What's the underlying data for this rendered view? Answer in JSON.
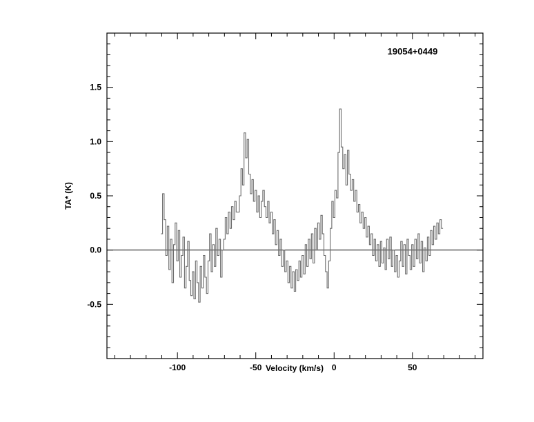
{
  "page": {
    "background": "#ffffff"
  },
  "chart_data": {
    "type": "line",
    "style": "step-histogram",
    "title": "19054+0449",
    "xlabel": "Velocity (km/s)",
    "ylabel": "TA* (K)",
    "xlim": [
      -145,
      95
    ],
    "ylim": [
      -1.0,
      2.0
    ],
    "x_major_ticks": [
      -100,
      -50,
      0,
      50
    ],
    "x_major_tick_labels": [
      "-100",
      "-50",
      "0",
      "50"
    ],
    "x_minor_tick_interval": 10,
    "y_major_ticks": [
      -0.5,
      0.0,
      0.5,
      1.0,
      1.5
    ],
    "y_major_tick_labels": [
      "-0.5",
      "0.0",
      "0.5",
      "1.0",
      "1.5"
    ],
    "y_minor_tick_interval": 0.1,
    "zero_line": 0.0,
    "grid": "off",
    "legend": "none",
    "line_color": "#6b6b6b",
    "axis_color": "#000000",
    "x_start": -110,
    "dx": 1.0,
    "values": [
      0.15,
      0.52,
      0.28,
      -0.05,
      0.22,
      -0.18,
      0.1,
      -0.3,
      0.05,
      0.25,
      -0.1,
      0.18,
      -0.25,
      -0.05,
      0.12,
      -0.35,
      -0.15,
      0.08,
      -0.28,
      -0.42,
      -0.2,
      -0.45,
      -0.1,
      -0.3,
      -0.48,
      -0.15,
      -0.35,
      -0.05,
      -0.25,
      -0.4,
      -0.1,
      0.15,
      -0.2,
      0.05,
      -0.15,
      0.2,
      -0.05,
      0.1,
      -0.25,
      0.0,
      0.1,
      0.3,
      0.15,
      0.35,
      0.2,
      0.4,
      0.28,
      0.45,
      0.35,
      0.35,
      0.5,
      0.75,
      0.6,
      1.08,
      0.85,
      1.02,
      0.7,
      0.52,
      0.65,
      0.45,
      0.55,
      0.35,
      0.5,
      0.3,
      0.45,
      0.55,
      0.4,
      0.3,
      0.45,
      0.25,
      0.35,
      0.15,
      0.28,
      0.05,
      0.18,
      -0.05,
      0.1,
      -0.15,
      0.0,
      -0.2,
      -0.1,
      -0.3,
      -0.15,
      -0.35,
      -0.2,
      -0.38,
      -0.18,
      -0.28,
      -0.1,
      -0.25,
      -0.05,
      -0.22,
      0.05,
      -0.15,
      0.1,
      -0.08,
      0.15,
      -0.12,
      0.2,
      0.0,
      0.25,
      0.1,
      0.32,
      0.15,
      -0.05,
      -0.2,
      -0.35,
      -0.1,
      0.2,
      0.45,
      0.3,
      0.55,
      0.48,
      0.9,
      1.3,
      0.95,
      0.75,
      0.88,
      0.6,
      0.92,
      0.7,
      0.55,
      0.65,
      0.45,
      0.55,
      0.35,
      0.42,
      0.25,
      0.35,
      0.2,
      0.3,
      0.12,
      0.22,
      0.05,
      0.15,
      -0.05,
      0.1,
      -0.1,
      0.05,
      -0.15,
      0.08,
      -0.12,
      0.02,
      -0.18,
      0.1,
      -0.08,
      0.12,
      -0.15,
      0.0,
      -0.2,
      -0.05,
      -0.25,
      -0.1,
      0.08,
      -0.15,
      0.05,
      -0.22,
      0.1,
      -0.05,
      -0.18,
      0.05,
      -0.15,
      0.1,
      -0.08,
      0.15,
      -0.12,
      0.08,
      -0.2,
      0.02,
      -0.1,
      0.12,
      -0.05,
      0.18,
      0.05,
      0.22,
      0.1,
      0.25,
      0.15,
      0.28,
      0.2
    ]
  }
}
